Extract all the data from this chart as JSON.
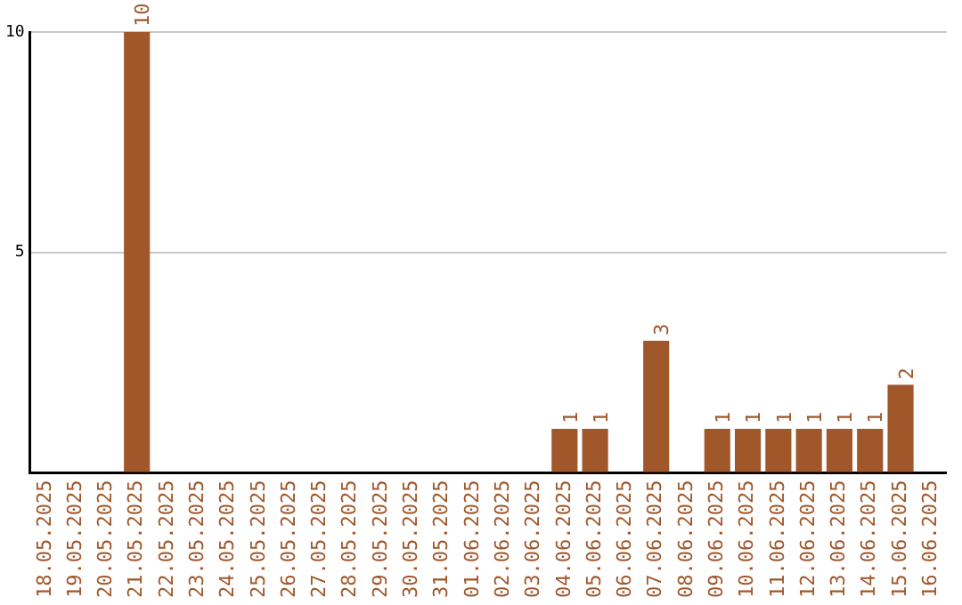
{
  "chart_data": {
    "type": "bar",
    "categories": [
      "18.05.2025",
      "19.05.2025",
      "20.05.2025",
      "21.05.2025",
      "22.05.2025",
      "23.05.2025",
      "24.05.2025",
      "25.05.2025",
      "26.05.2025",
      "27.05.2025",
      "28.05.2025",
      "29.05.2025",
      "30.05.2025",
      "31.05.2025",
      "01.06.2025",
      "02.06.2025",
      "03.06.2025",
      "04.06.2025",
      "05.06.2025",
      "06.06.2025",
      "07.06.2025",
      "08.06.2025",
      "09.06.2025",
      "10.06.2025",
      "11.06.2025",
      "12.06.2025",
      "13.06.2025",
      "14.06.2025",
      "15.06.2025",
      "16.06.2025"
    ],
    "values": [
      0,
      0,
      0,
      10,
      0,
      0,
      0,
      0,
      0,
      0,
      0,
      0,
      0,
      0,
      0,
      0,
      0,
      1,
      1,
      0,
      3,
      0,
      1,
      1,
      1,
      1,
      1,
      1,
      2,
      0
    ],
    "value_labels": [
      null,
      null,
      null,
      "10",
      null,
      null,
      null,
      null,
      null,
      null,
      null,
      null,
      null,
      null,
      null,
      null,
      null,
      "1",
      "1",
      null,
      "3",
      null,
      "1",
      "1",
      "1",
      "1",
      "1",
      "1",
      "2",
      null
    ],
    "color": "#a0572a",
    "ylim": [
      0,
      10
    ],
    "yticks": [
      {
        "value": 0,
        "label": null
      },
      5,
      10
    ],
    "grid": "y",
    "legend": false
  }
}
